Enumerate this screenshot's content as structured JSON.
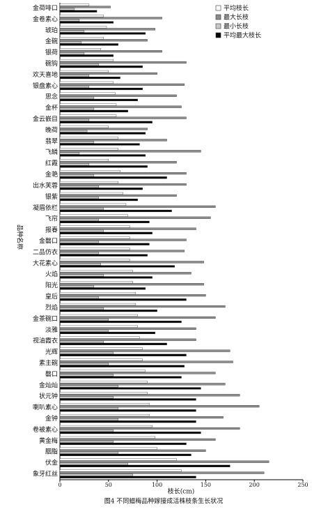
{
  "chart_data": {
    "type": "barh",
    "title": "图4    不同蜡梅品种嫁接成活株枝条生长状况",
    "x_label": "枝长(cm)",
    "y_label": "品种名称",
    "categories": [
      "金荷啡口",
      "金卷素心",
      "琥珀",
      "金碗",
      "银荷",
      "碗钩",
      "欢天喜地",
      "银盘素心",
      "思念",
      "金杯",
      "金云嵌目",
      "晚荷",
      "翡翠",
      "飞鳞",
      "红霞",
      "金艳",
      "出水芙蓉",
      "银紫",
      "凝眉依栏",
      "飞帘",
      "报春",
      "金磬口",
      "二品仿衣",
      "大花素心",
      "火焰",
      "阳光",
      "皇后",
      "烈焰",
      "金茶碗口",
      "淡雅",
      "视油霞衣",
      "光辉",
      "素主碗",
      "磬口",
      "金灿灿",
      "状元钟",
      "喇叭素心",
      "金钟",
      "卷被素心",
      "黄金梅",
      "胭脂",
      "伏金",
      "象牙红丝"
    ],
    "series": [
      {
        "name": "平均枝长",
        "color": "#ffffff",
        "values": [
          30,
          45,
          48,
          45,
          42,
          55,
          50,
          55,
          57,
          58,
          58,
          50,
          60,
          60,
          50,
          62,
          60,
          65,
          68,
          70,
          72,
          72,
          72,
          72,
          75,
          75,
          78,
          78,
          80,
          80,
          82,
          85,
          85,
          88,
          90,
          90,
          92,
          92,
          95,
          98,
          100,
          120,
          125
        ]
      },
      {
        "name": "最大长枝",
        "color": "#8c8c8c",
        "values": [
          52,
          105,
          98,
          90,
          105,
          130,
          100,
          128,
          120,
          125,
          130,
          90,
          110,
          145,
          120,
          130,
          130,
          120,
          160,
          155,
          140,
          130,
          128,
          148,
          135,
          148,
          150,
          170,
          160,
          140,
          140,
          175,
          178,
          160,
          170,
          185,
          205,
          168,
          185,
          160,
          150,
          215,
          210
        ]
      },
      {
        "name": "最小长枝",
        "color": "#c8c8c8",
        "values": [
          15,
          20,
          25,
          22,
          25,
          40,
          30,
          30,
          35,
          35,
          30,
          28,
          35,
          20,
          30,
          35,
          40,
          40,
          45,
          40,
          45,
          40,
          40,
          42,
          45,
          35,
          40,
          45,
          50,
          50,
          45,
          55,
          50,
          55,
          60,
          55,
          60,
          60,
          55,
          55,
          60,
          70,
          75
        ]
      },
      {
        "name": "平均最大枝长",
        "color": "#000000",
        "values": [
          38,
          55,
          88,
          60,
          55,
          85,
          62,
          85,
          80,
          70,
          95,
          88,
          82,
          88,
          90,
          110,
          85,
          80,
          115,
          92,
          95,
          92,
          90,
          118,
          95,
          88,
          130,
          100,
          125,
          98,
          110,
          130,
          128,
          125,
          145,
          140,
          140,
          140,
          145,
          130,
          135,
          175,
          140
        ]
      }
    ],
    "xlim": [
      0,
      250
    ],
    "xticks": [
      0,
      50,
      100,
      150,
      200,
      250
    ],
    "legend": "upper right"
  }
}
